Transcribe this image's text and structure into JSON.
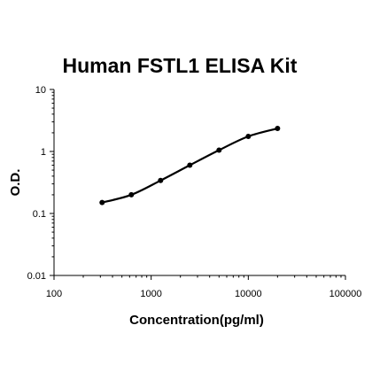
{
  "chart_data": {
    "type": "scatter",
    "title": "Human FSTL1 ELISA Kit",
    "xlabel": "Concentration(pg/ml)",
    "ylabel": "O.D.",
    "x_scale": "log",
    "y_scale": "log",
    "xlim": [
      100,
      100000
    ],
    "ylim": [
      0.01,
      10
    ],
    "x_ticks": [
      100,
      1000,
      10000,
      100000
    ],
    "x_tick_labels": [
      "100",
      "1000",
      "10000",
      "100000"
    ],
    "y_ticks": [
      0.01,
      0.1,
      1,
      10
    ],
    "y_tick_labels": [
      "0.01",
      "0.1",
      "1",
      "10"
    ],
    "grid": false,
    "legend": "none",
    "colors": {
      "line": "#000000",
      "marker": "#000000"
    },
    "series": [
      {
        "x": [
          312.5,
          625,
          1250,
          2500,
          5000,
          10000,
          20000
        ],
        "y": [
          0.15,
          0.2,
          0.34,
          0.6,
          1.05,
          1.75,
          2.35
        ]
      }
    ]
  }
}
